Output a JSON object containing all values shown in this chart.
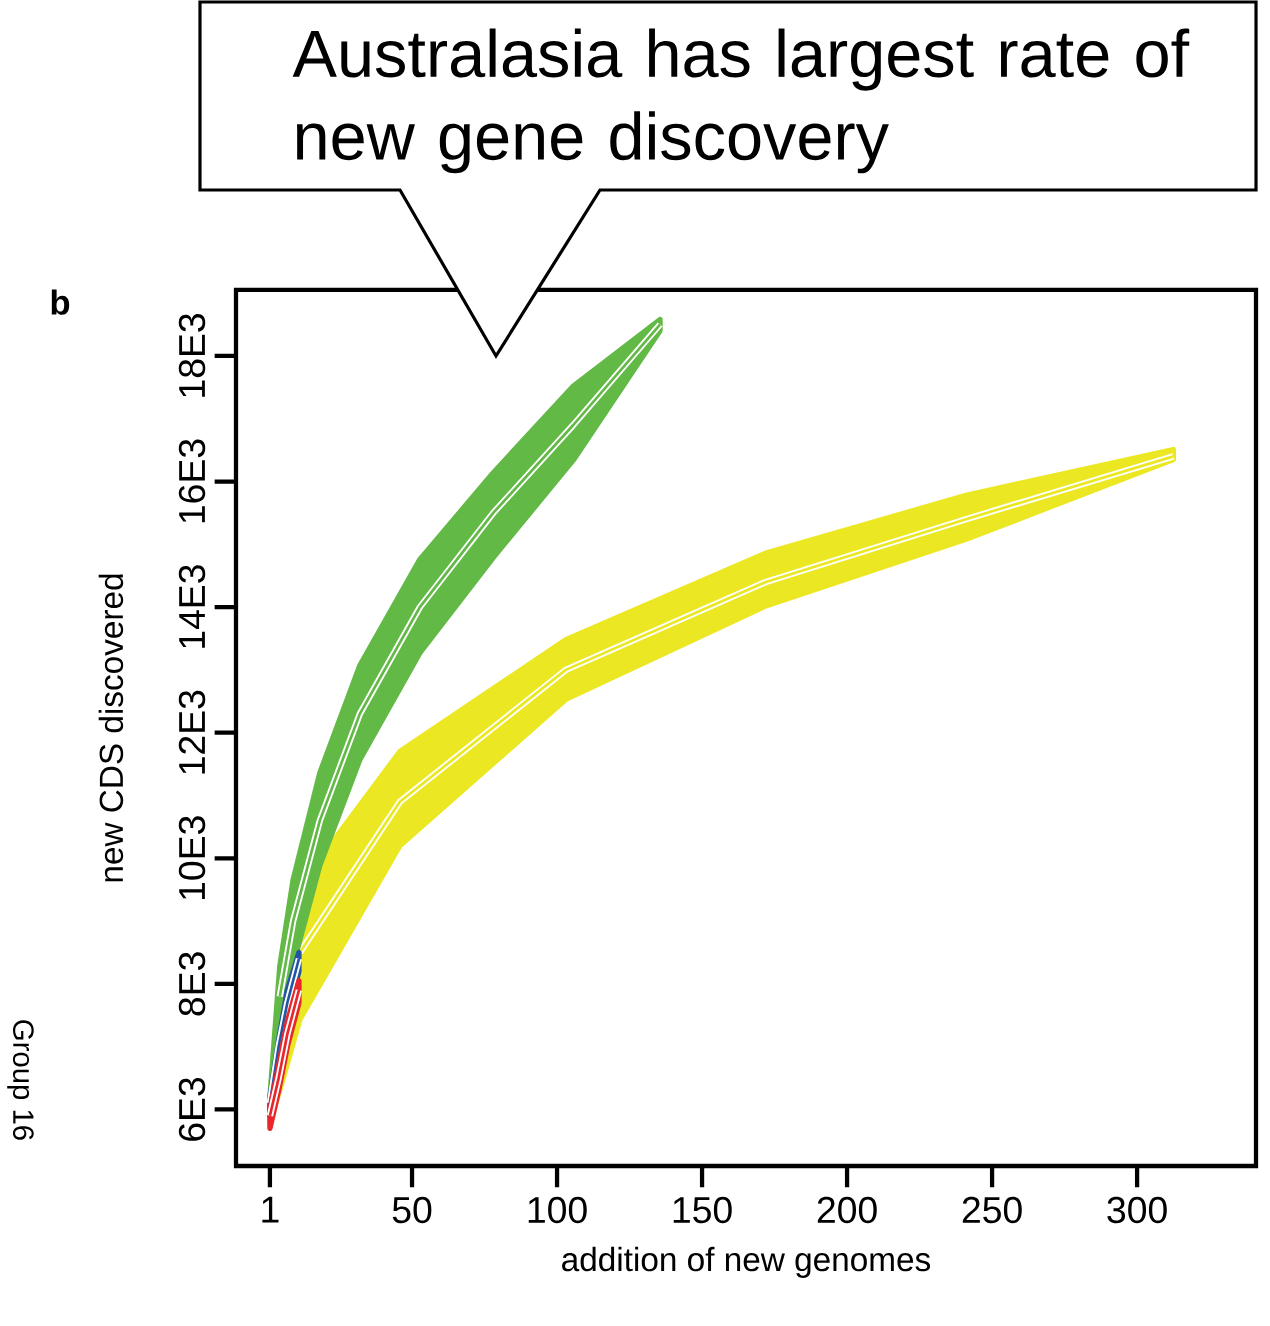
{
  "chart_data": {
    "type": "line",
    "xlabel": "addition of new genomes",
    "ylabel": "new CDS discovered",
    "xlim": [
      -10.7,
      341
    ],
    "ylim": [
      5100,
      19050
    ],
    "xticks": [
      1,
      50,
      100,
      150,
      200,
      250,
      300
    ],
    "yticks": [
      {
        "value": 6000,
        "label": "6E3"
      },
      {
        "value": 8000,
        "label": "8E3"
      },
      {
        "value": 10000,
        "label": "10E3"
      },
      {
        "value": 12000,
        "label": "12E3"
      },
      {
        "value": 14000,
        "label": "14E3"
      },
      {
        "value": 16000,
        "label": "16E3"
      },
      {
        "value": 18000,
        "label": "18E3"
      }
    ],
    "grid": false,
    "annotations": [
      "Australasia has largest rate of new gene discovery",
      "b",
      "Group 16"
    ],
    "series": [
      {
        "color": "#ebe823",
        "x": [
          1,
          5,
          11.3,
          45.8,
          103,
          172,
          241,
          312.5
        ],
        "lower": [
          5800,
          6400,
          7430,
          10200,
          12530,
          14020,
          15080,
          16350
        ],
        "upper": [
          6200,
          8000,
          9560,
          11700,
          13480,
          14860,
          15780,
          16510
        ],
        "values": [
          null,
          null,
          8500,
          10900,
          13000,
          14400,
          15400,
          16400
        ]
      },
      {
        "color": "#62b946",
        "x": [
          1,
          4.4,
          9,
          18.2,
          32,
          52.7,
          78,
          105.6,
          135.5
        ],
        "lower": [
          5900,
          7300,
          8300,
          9885,
          11570,
          13270,
          14790,
          16340,
          18400
        ],
        "upper": [
          6200,
          8283,
          9660,
          11360,
          13070,
          14760,
          16140,
          17520,
          18580
        ],
        "values": [
          null,
          7800,
          9000,
          10600,
          12300,
          14000,
          15500,
          16900,
          18500
        ]
      },
      {
        "color": "#2255a4",
        "x": [
          1,
          4,
          7,
          11
        ],
        "lower": [
          5900,
          6800,
          7500,
          8200
        ],
        "upper": [
          6200,
          7100,
          7900,
          8500
        ],
        "values": [
          6100,
          7000,
          7700,
          8400
        ]
      },
      {
        "color": "#e8262b",
        "x": [
          1,
          4,
          7,
          11
        ],
        "lower": [
          5700,
          6300,
          7000,
          7700
        ],
        "upper": [
          6000,
          6700,
          7400,
          8050
        ],
        "values": [
          5900,
          6500,
          7200,
          7900
        ]
      }
    ]
  }
}
